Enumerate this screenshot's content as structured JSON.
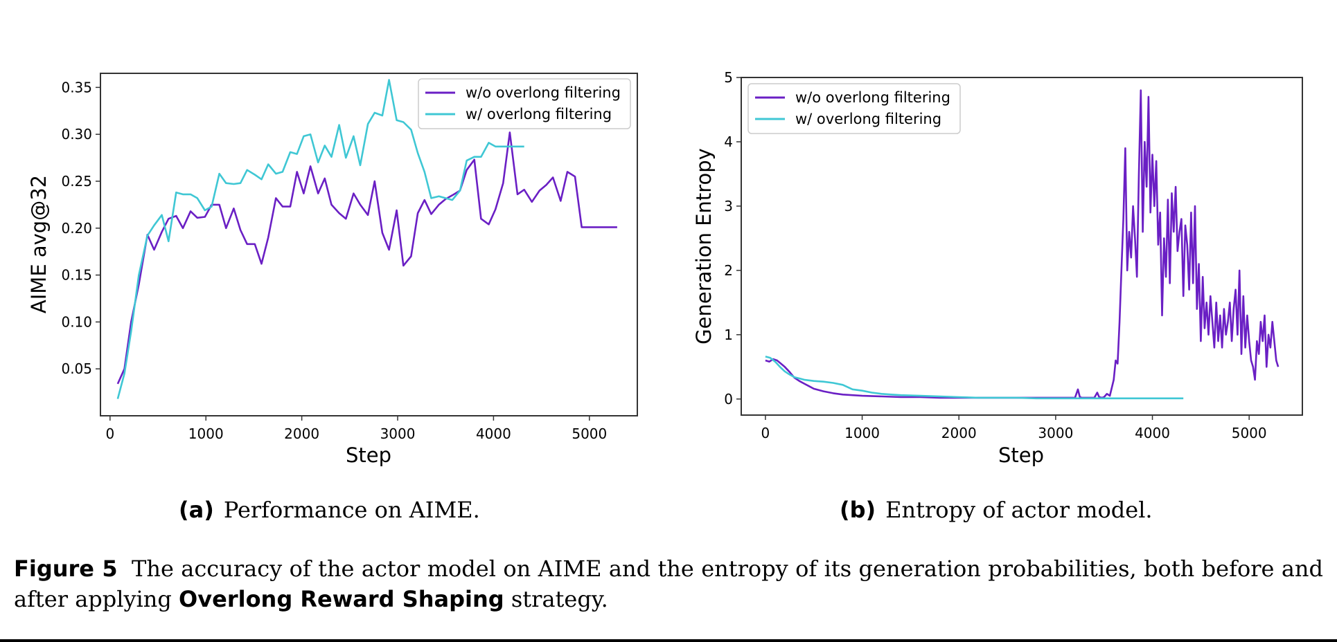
{
  "colors": {
    "wo": "#6a1fc4",
    "w": "#3fc7d4"
  },
  "legend": {
    "wo_label": "w/o overlong filtering",
    "w_label": "w/ overlong filtering"
  },
  "panels": {
    "a": {
      "tag": "(a)",
      "text": "Performance on AIME."
    },
    "b": {
      "tag": "(b)",
      "text": "Entropy of actor model."
    }
  },
  "caption": {
    "label": "Figure 5",
    "text": "The accuracy of the actor model on AIME and the entropy of its generation probabilities, both before and after applying",
    "strategy": "Overlong Reward Shaping",
    "tail": "strategy."
  },
  "chart_data": [
    {
      "type": "line",
      "xlabel": "Step",
      "ylabel": "AIME avg@32",
      "xlim": [
        -100,
        5500
      ],
      "ylim": [
        0.0,
        0.365
      ],
      "xticks": [
        0,
        1000,
        2000,
        3000,
        4000,
        5000
      ],
      "yticks": [
        0.05,
        0.1,
        0.15,
        0.2,
        0.25,
        0.3,
        0.35
      ],
      "ytick_labels": [
        "0.05",
        "0.10",
        "0.15",
        "0.20",
        "0.25",
        "0.30",
        "0.35"
      ],
      "legend_position": "upper right",
      "grid": false,
      "series": [
        {
          "name": "w/o overlong filtering",
          "color": "#6a1fc4",
          "x": [
            80,
            150,
            220,
            300,
            390,
            460,
            540,
            610,
            690,
            760,
            840,
            910,
            990,
            1060,
            1140,
            1210,
            1290,
            1360,
            1430,
            1510,
            1580,
            1650,
            1730,
            1800,
            1880,
            1950,
            2020,
            2090,
            2170,
            2240,
            2310,
            2390,
            2460,
            2540,
            2610,
            2690,
            2760,
            2840,
            2910,
            2990,
            3060,
            3140,
            3210,
            3280,
            3350,
            3430,
            3500,
            3570,
            3650,
            3720,
            3800,
            3870,
            3950,
            4020,
            4100,
            4170,
            4250,
            4320,
            4400,
            4480,
            4550,
            4620,
            4700,
            4770,
            4850,
            4920,
            5000,
            5070,
            5150,
            5220,
            5290
          ],
          "y": [
            0.034,
            0.05,
            0.1,
            0.14,
            0.193,
            0.177,
            0.196,
            0.21,
            0.213,
            0.2,
            0.218,
            0.211,
            0.212,
            0.225,
            0.225,
            0.2,
            0.221,
            0.198,
            0.183,
            0.183,
            0.162,
            0.19,
            0.232,
            0.223,
            0.223,
            0.26,
            0.237,
            0.266,
            0.237,
            0.253,
            0.225,
            0.216,
            0.21,
            0.237,
            0.225,
            0.214,
            0.25,
            0.195,
            0.177,
            0.219,
            0.16,
            0.17,
            0.216,
            0.23,
            0.215,
            0.225,
            0.231,
            0.235,
            0.24,
            0.262,
            0.273,
            0.21,
            0.204,
            0.22,
            0.248,
            0.302,
            0.236,
            0.241,
            0.228,
            0.24,
            0.246,
            0.254,
            0.229,
            0.26,
            0.255,
            0.201,
            0.201,
            0.201,
            0.201,
            0.201,
            0.201
          ]
        },
        {
          "name": "w/ overlong filtering",
          "color": "#3fc7d4",
          "x": [
            80,
            150,
            220,
            300,
            390,
            460,
            540,
            610,
            690,
            760,
            840,
            910,
            990,
            1060,
            1140,
            1210,
            1290,
            1360,
            1430,
            1510,
            1580,
            1650,
            1730,
            1800,
            1880,
            1950,
            2020,
            2090,
            2170,
            2240,
            2310,
            2390,
            2460,
            2540,
            2610,
            2690,
            2760,
            2840,
            2910,
            2990,
            3060,
            3140,
            3210,
            3280,
            3350,
            3430,
            3500,
            3570,
            3650,
            3720,
            3800,
            3870,
            3950,
            4020,
            4100,
            4170,
            4250,
            4320
          ],
          "y": [
            0.018,
            0.045,
            0.09,
            0.15,
            0.192,
            0.203,
            0.214,
            0.186,
            0.238,
            0.236,
            0.236,
            0.232,
            0.219,
            0.223,
            0.258,
            0.248,
            0.247,
            0.248,
            0.262,
            0.257,
            0.252,
            0.268,
            0.258,
            0.26,
            0.281,
            0.279,
            0.298,
            0.3,
            0.27,
            0.288,
            0.276,
            0.31,
            0.275,
            0.298,
            0.267,
            0.311,
            0.323,
            0.32,
            0.358,
            0.315,
            0.313,
            0.305,
            0.28,
            0.26,
            0.232,
            0.234,
            0.232,
            0.23,
            0.24,
            0.272,
            0.276,
            0.276,
            0.291,
            0.287,
            0.287,
            0.287,
            0.287,
            0.287
          ]
        }
      ]
    },
    {
      "type": "line",
      "xlabel": "Step",
      "ylabel": "Generation Entropy",
      "xlim": [
        -250,
        5550
      ],
      "ylim": [
        -0.25,
        5.0
      ],
      "xticks": [
        0,
        1000,
        2000,
        3000,
        4000,
        5000
      ],
      "yticks": [
        0,
        1,
        2,
        3,
        4,
        5
      ],
      "ytick_labels": [
        "0",
        "1",
        "2",
        "3",
        "4",
        "5"
      ],
      "legend_position": "upper left",
      "grid": false,
      "series": [
        {
          "name": "w/o overlong filtering",
          "color": "#6a1fc4",
          "x": [
            0,
            40,
            80,
            120,
            160,
            200,
            250,
            300,
            350,
            400,
            450,
            500,
            600,
            700,
            800,
            900,
            1000,
            1200,
            1400,
            1600,
            1800,
            2000,
            2200,
            2400,
            2600,
            2800,
            3000,
            3200,
            3230,
            3250,
            3270,
            3300,
            3400,
            3430,
            3450,
            3480,
            3500,
            3530,
            3560,
            3600,
            3620,
            3640,
            3660,
            3680,
            3700,
            3720,
            3740,
            3760,
            3780,
            3800,
            3820,
            3840,
            3860,
            3880,
            3900,
            3920,
            3940,
            3960,
            3980,
            4000,
            4020,
            4040,
            4060,
            4080,
            4100,
            4120,
            4140,
            4160,
            4180,
            4200,
            4220,
            4240,
            4260,
            4280,
            4300,
            4320,
            4340,
            4360,
            4380,
            4400,
            4420,
            4440,
            4460,
            4480,
            4500,
            4520,
            4540,
            4560,
            4580,
            4600,
            4620,
            4640,
            4660,
            4680,
            4700,
            4720,
            4740,
            4760,
            4780,
            4800,
            4820,
            4840,
            4860,
            4880,
            4900,
            4920,
            4940,
            4960,
            4980,
            5000,
            5020,
            5040,
            5060,
            5080,
            5100,
            5120,
            5140,
            5160,
            5180,
            5200,
            5220,
            5240,
            5260,
            5280,
            5300
          ],
          "y": [
            0.6,
            0.58,
            0.62,
            0.6,
            0.55,
            0.5,
            0.42,
            0.33,
            0.28,
            0.24,
            0.2,
            0.16,
            0.12,
            0.09,
            0.07,
            0.06,
            0.05,
            0.04,
            0.03,
            0.03,
            0.02,
            0.02,
            0.02,
            0.02,
            0.02,
            0.02,
            0.02,
            0.02,
            0.15,
            0.03,
            0.02,
            0.02,
            0.02,
            0.1,
            0.03,
            0.02,
            0.03,
            0.08,
            0.05,
            0.3,
            0.6,
            0.55,
            1.2,
            2.0,
            2.8,
            3.9,
            2.0,
            2.6,
            2.2,
            3.0,
            2.5,
            1.9,
            3.5,
            4.8,
            2.6,
            4.0,
            3.3,
            4.7,
            2.9,
            3.8,
            3.0,
            3.7,
            2.4,
            2.9,
            1.3,
            2.5,
            1.9,
            3.1,
            1.8,
            3.2,
            2.6,
            3.3,
            2.3,
            2.6,
            2.8,
            1.6,
            2.7,
            2.4,
            1.7,
            2.9,
            1.8,
            3.0,
            1.4,
            2.1,
            0.9,
            1.9,
            1.1,
            1.5,
            1.0,
            1.6,
            1.2,
            0.8,
            1.5,
            0.9,
            1.3,
            0.8,
            1.4,
            1.0,
            1.2,
            1.5,
            0.9,
            1.4,
            1.7,
            1.0,
            2.0,
            0.7,
            1.6,
            0.8,
            1.3,
            0.9,
            0.6,
            0.5,
            0.3,
            0.9,
            0.7,
            1.2,
            0.9,
            1.3,
            0.5,
            1.0,
            0.8,
            1.2,
            0.9,
            0.6,
            0.5
          ]
        },
        {
          "name": "w/ overlong filtering",
          "color": "#3fc7d4",
          "x": [
            0,
            50,
            100,
            150,
            200,
            250,
            300,
            350,
            400,
            500,
            600,
            700,
            800,
            900,
            1000,
            1100,
            1200,
            1300,
            1400,
            1600,
            1800,
            2000,
            2200,
            2400,
            2600,
            2800,
            3000,
            3200,
            3400,
            3600,
            3800,
            4000,
            4200,
            4320
          ],
          "y": [
            0.66,
            0.64,
            0.58,
            0.5,
            0.43,
            0.38,
            0.34,
            0.32,
            0.3,
            0.28,
            0.27,
            0.25,
            0.22,
            0.15,
            0.13,
            0.1,
            0.08,
            0.07,
            0.06,
            0.05,
            0.04,
            0.03,
            0.02,
            0.02,
            0.02,
            0.01,
            0.01,
            0.01,
            0.01,
            0.01,
            0.01,
            0.01,
            0.01,
            0.01
          ]
        }
      ]
    }
  ]
}
